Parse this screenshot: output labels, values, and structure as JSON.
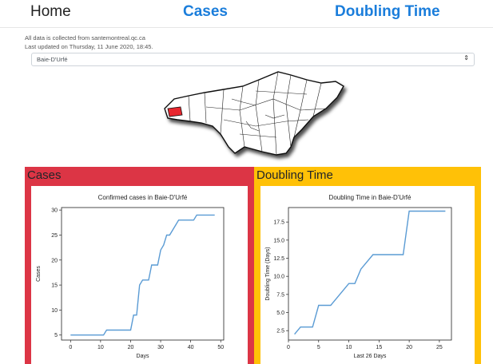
{
  "nav": {
    "home": "Home",
    "cases": "Cases",
    "doubling": "Doubling Time"
  },
  "info": {
    "source": "All data is collected from santemontreal.qc.ca",
    "updated": "Last updated on Thursday, 11 June 2020, 18:45."
  },
  "selector": {
    "value": "Baie-D'Urfé",
    "arrow_icon": "up-down-arrows-icon"
  },
  "colors": {
    "cases_panel": "#dc3545",
    "doubling_panel": "#ffc107",
    "line": "#5a9bd4",
    "highlight": "#e8262e"
  },
  "panels": {
    "cases_title": "Cases",
    "doubling_title": "Doubling Time"
  },
  "chart_data": [
    {
      "type": "line",
      "title": "Confirmed cases in Baie-D'Urfé",
      "xlabel": "Days",
      "ylabel": "Cases",
      "xlim": [
        -3,
        51
      ],
      "ylim": [
        4,
        30.5
      ],
      "xticks": [
        0,
        10,
        20,
        30,
        40,
        50
      ],
      "yticks": [
        5,
        10,
        15,
        20,
        25,
        30
      ],
      "series": [
        {
          "x": [
            0,
            11,
            12,
            20,
            21,
            22,
            23,
            24,
            26,
            27,
            28,
            29,
            30,
            31,
            32,
            33,
            35,
            36,
            37,
            41,
            42,
            48
          ],
          "values": [
            5,
            5,
            6,
            6,
            9,
            9,
            15,
            16,
            16,
            19,
            19,
            19,
            22,
            23,
            25,
            25,
            27,
            28,
            28,
            28,
            29,
            29
          ]
        }
      ]
    },
    {
      "type": "line",
      "title": "Doubling Time in  Baie-D'Urfé",
      "xlabel": "Last 26 Days",
      "ylabel": "Doubling Time (Days)",
      "xlim": [
        0,
        27
      ],
      "ylim": [
        1.2,
        19.5
      ],
      "xticks": [
        0,
        5,
        10,
        15,
        20,
        25
      ],
      "yticks": [
        2.5,
        5.0,
        7.5,
        10.0,
        12.5,
        15.0,
        17.5
      ],
      "series": [
        {
          "x": [
            1,
            2,
            4,
            5,
            7,
            10,
            11,
            12,
            14,
            19,
            20,
            26
          ],
          "values": [
            2,
            3,
            3,
            6,
            6,
            9,
            9,
            11,
            13,
            13,
            19,
            19
          ]
        }
      ]
    }
  ]
}
